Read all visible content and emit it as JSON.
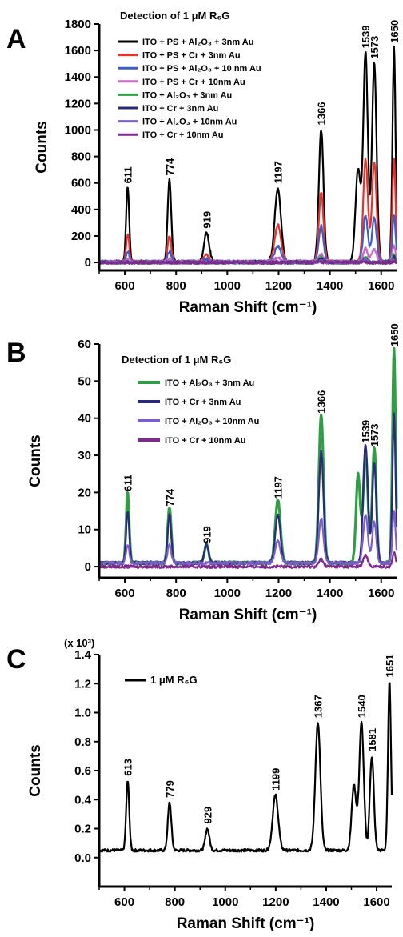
{
  "chart_data": [
    {
      "panel": "A",
      "type": "line",
      "title": "Detection of 1 μM R₆G",
      "xlabel": "Raman Shift (cm⁻¹)",
      "ylabel": "Counts",
      "xlim": [
        500,
        1660
      ],
      "ylim": [
        -60,
        1800
      ],
      "xticks": [
        600,
        800,
        1000,
        1200,
        1400,
        1600
      ],
      "yticks": [
        0,
        200,
        400,
        600,
        800,
        1000,
        1200,
        1400,
        1600,
        1800
      ],
      "legend_position": "top-left",
      "series": [
        {
          "name": "ITO + PS + Al₂O₃ + 3nm Au",
          "color": "#000000",
          "baseline": 5,
          "peaks": [
            [
              611,
              560,
              6
            ],
            [
              774,
              620,
              7
            ],
            [
              919,
              220,
              10
            ],
            [
              1197,
              560,
              12
            ],
            [
              1366,
              1000,
              9
            ],
            [
              1510,
              700,
              10
            ],
            [
              1539,
              1580,
              9
            ],
            [
              1573,
              1500,
              9
            ],
            [
              1650,
              1620,
              6
            ]
          ]
        },
        {
          "name": "ITO + PS + Cr + 3nm Au",
          "color": "#e8322b",
          "baseline": 5,
          "peaks": [
            [
              611,
              210,
              6
            ],
            [
              774,
              190,
              7
            ],
            [
              919,
              50,
              10
            ],
            [
              1197,
              280,
              12
            ],
            [
              1366,
              520,
              9
            ],
            [
              1539,
              780,
              9
            ],
            [
              1573,
              750,
              9
            ],
            [
              1650,
              780,
              6
            ]
          ]
        },
        {
          "name": "ITO + PS + Al₂O₃ + 10 nm Au",
          "color": "#3e5dc6",
          "baseline": 5,
          "peaks": [
            [
              611,
              80,
              6
            ],
            [
              774,
              80,
              7
            ],
            [
              919,
              20,
              10
            ],
            [
              1197,
              120,
              12
            ],
            [
              1366,
              270,
              9
            ],
            [
              1539,
              350,
              9
            ],
            [
              1573,
              330,
              9
            ],
            [
              1650,
              360,
              6
            ]
          ]
        },
        {
          "name": "ITO + PS + Cr + 10nm Au",
          "color": "#c66bc6",
          "baseline": 5,
          "peaks": [
            [
              611,
              20,
              6
            ],
            [
              774,
              20,
              7
            ],
            [
              1197,
              30,
              12
            ],
            [
              1366,
              60,
              9
            ],
            [
              1539,
              100,
              9
            ],
            [
              1573,
              100,
              9
            ],
            [
              1650,
              120,
              6
            ]
          ]
        },
        {
          "name": "ITO + Al₂O₃ + 3nm Au",
          "color": "#2f9e44",
          "baseline": 0,
          "peaks": [
            [
              1366,
              40,
              9
            ],
            [
              1539,
              40,
              9
            ],
            [
              1650,
              60,
              6
            ]
          ]
        },
        {
          "name": "ITO + Cr + 3nm Au",
          "color": "#2a2a7a",
          "baseline": 0,
          "peaks": [
            [
              1366,
              30,
              9
            ],
            [
              1539,
              30,
              9
            ],
            [
              1650,
              40,
              6
            ]
          ]
        },
        {
          "name": "ITO + Al₂O₃ + 10nm Au",
          "color": "#7b5fc9",
          "baseline": 0,
          "peaks": [
            [
              1366,
              12,
              9
            ],
            [
              1539,
              15,
              9
            ],
            [
              1650,
              20,
              6
            ]
          ]
        },
        {
          "name": "ITO + Cr + 10nm Au",
          "color": "#7d2a8c",
          "baseline": 0,
          "peaks": [
            [
              1650,
              8,
              6
            ]
          ]
        }
      ],
      "annotations": [
        {
          "text": "611",
          "x": 611,
          "y": 560
        },
        {
          "text": "774",
          "x": 774,
          "y": 620
        },
        {
          "text": "919",
          "x": 919,
          "y": 220
        },
        {
          "text": "1197",
          "x": 1197,
          "y": 560
        },
        {
          "text": "1366",
          "x": 1366,
          "y": 1000
        },
        {
          "text": "1539",
          "x": 1539,
          "y": 1580
        },
        {
          "text": "1573",
          "x": 1573,
          "y": 1500
        },
        {
          "text": "1650",
          "x": 1650,
          "y": 1620
        }
      ]
    },
    {
      "panel": "B",
      "type": "line",
      "title": "Detection of 1 μM R₆G",
      "xlabel": "Raman Shift (cm⁻¹)",
      "ylabel": "Counts",
      "xlim": [
        500,
        1660
      ],
      "ylim": [
        -3,
        60
      ],
      "xticks": [
        600,
        800,
        1000,
        1200,
        1400,
        1600
      ],
      "yticks": [
        0,
        10,
        20,
        30,
        40,
        50,
        60
      ],
      "legend_position": "top-left",
      "series": [
        {
          "name": "ITO + Al₂O₃ + 3nm Au",
          "color": "#2f9e44",
          "baseline": 1,
          "peaks": [
            [
              611,
              19,
              6
            ],
            [
              774,
              15,
              7
            ],
            [
              919,
              5,
              8
            ],
            [
              1197,
              17,
              10
            ],
            [
              1366,
              40,
              9
            ],
            [
              1510,
              24,
              8
            ],
            [
              1539,
              30,
              9
            ],
            [
              1573,
              31,
              8
            ],
            [
              1650,
              58,
              6
            ]
          ]
        },
        {
          "name": "ITO + Cr + 3nm Au",
          "color": "#2a2a7a",
          "baseline": 1,
          "peaks": [
            [
              611,
              14,
              6
            ],
            [
              774,
              13,
              7
            ],
            [
              919,
              5,
              8
            ],
            [
              1197,
              13,
              10
            ],
            [
              1366,
              30,
              9
            ],
            [
              1539,
              32,
              9
            ],
            [
              1573,
              27,
              8
            ],
            [
              1650,
              40,
              6
            ]
          ]
        },
        {
          "name": "ITO + Al₂O₃ + 10nm Au",
          "color": "#7b5fc9",
          "baseline": 1,
          "peaks": [
            [
              611,
              5,
              6
            ],
            [
              774,
              5,
              7
            ],
            [
              1197,
              6,
              10
            ],
            [
              1366,
              12,
              9
            ],
            [
              1539,
              13,
              9
            ],
            [
              1573,
              11,
              8
            ],
            [
              1650,
              14,
              6
            ]
          ]
        },
        {
          "name": "ITO + Cr + 10nm Au",
          "color": "#7d2a8c",
          "baseline": 0,
          "peaks": [
            [
              1366,
              2,
              9
            ],
            [
              1539,
              3,
              9
            ],
            [
              1650,
              4,
              6
            ]
          ]
        }
      ],
      "annotations": [
        {
          "text": "611",
          "x": 611,
          "y": 19
        },
        {
          "text": "774",
          "x": 774,
          "y": 15
        },
        {
          "text": "919",
          "x": 919,
          "y": 5
        },
        {
          "text": "1197",
          "x": 1197,
          "y": 17
        },
        {
          "text": "1366",
          "x": 1366,
          "y": 40
        },
        {
          "text": "1539",
          "x": 1539,
          "y": 32
        },
        {
          "text": "1573",
          "x": 1573,
          "y": 31
        },
        {
          "text": "1650",
          "x": 1650,
          "y": 58
        }
      ]
    },
    {
      "panel": "C",
      "type": "line",
      "title": "",
      "multiplier": "(x 10³)",
      "xlabel": "Raman Shift (cm⁻¹)",
      "ylabel": "Counts",
      "xlim": [
        500,
        1660
      ],
      "ylim": [
        -0.2,
        1.4
      ],
      "xticks": [
        600,
        800,
        1000,
        1200,
        1400,
        1600
      ],
      "yticks": [
        0.0,
        0.2,
        0.4,
        0.6,
        0.8,
        1.0,
        1.2,
        1.4
      ],
      "legend_position": "top-left",
      "series": [
        {
          "name": "1 μM R₆G",
          "color": "#000000",
          "baseline": 0.05,
          "peaks": [
            [
              613,
              0.48,
              6
            ],
            [
              779,
              0.33,
              7
            ],
            [
              929,
              0.15,
              8
            ],
            [
              1199,
              0.38,
              11
            ],
            [
              1367,
              0.88,
              10
            ],
            [
              1510,
              0.45,
              9
            ],
            [
              1540,
              0.88,
              9
            ],
            [
              1581,
              0.65,
              8
            ],
            [
              1651,
              1.16,
              6
            ]
          ]
        }
      ],
      "annotations": [
        {
          "text": "613",
          "x": 613,
          "y": 0.53
        },
        {
          "text": "779",
          "x": 779,
          "y": 0.38
        },
        {
          "text": "929",
          "x": 929,
          "y": 0.2
        },
        {
          "text": "1199",
          "x": 1199,
          "y": 0.43
        },
        {
          "text": "1367",
          "x": 1367,
          "y": 0.93
        },
        {
          "text": "1540",
          "x": 1540,
          "y": 0.93
        },
        {
          "text": "1581",
          "x": 1581,
          "y": 0.7
        },
        {
          "text": "1651",
          "x": 1651,
          "y": 1.21
        }
      ]
    }
  ],
  "labels": {
    "panel_a": "A",
    "panel_b": "B",
    "panel_c": "C"
  }
}
